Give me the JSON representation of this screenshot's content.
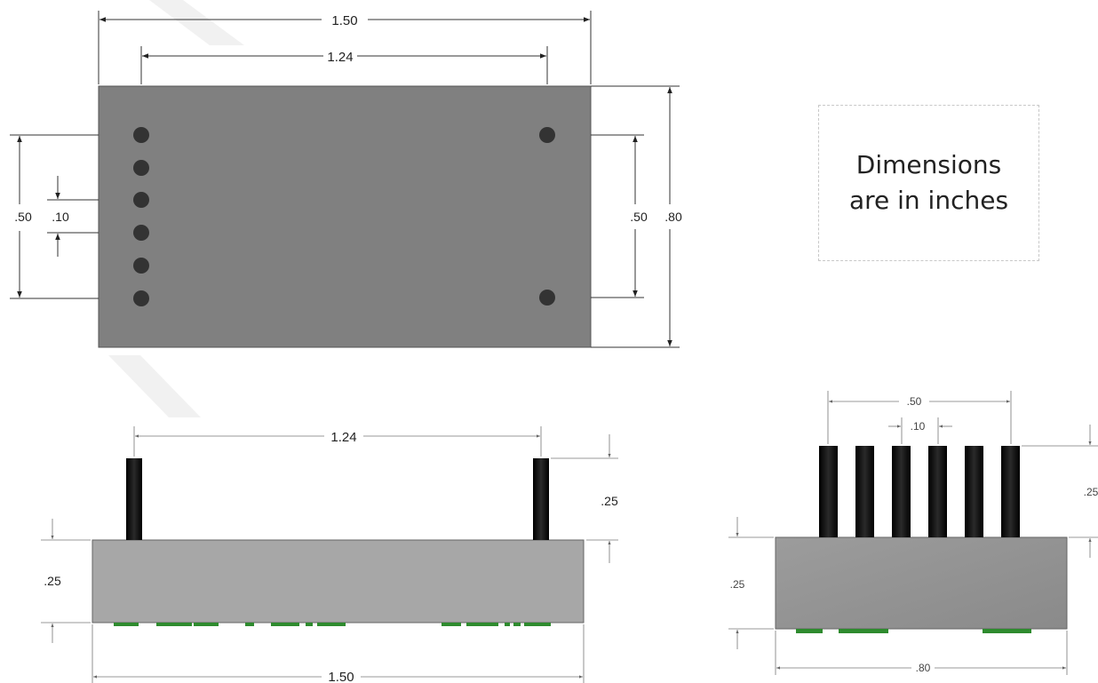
{
  "note": {
    "line1": "Dimensions",
    "line2": "are in inches"
  },
  "top_view": {
    "width_overall": "1.50",
    "pin_row_spacing": "1.24",
    "pin_span_left": ".50",
    "pin_pitch": ".10",
    "pin_span_right": ".50",
    "height_overall": ".80"
  },
  "front_view": {
    "pin_row_spacing": "1.24",
    "pin_height": ".25",
    "body_height": ".25",
    "width_overall": "1.50"
  },
  "side_view": {
    "pin_span": ".50",
    "pin_pitch": ".10",
    "pin_height": ".25",
    "body_height": ".25",
    "depth_overall": ".80"
  },
  "colors": {
    "body_top": "#808080",
    "body_side": "#a7a7a7",
    "pin": "#111111",
    "hole": "#333333",
    "pcb_components": "#2e8b2e"
  }
}
